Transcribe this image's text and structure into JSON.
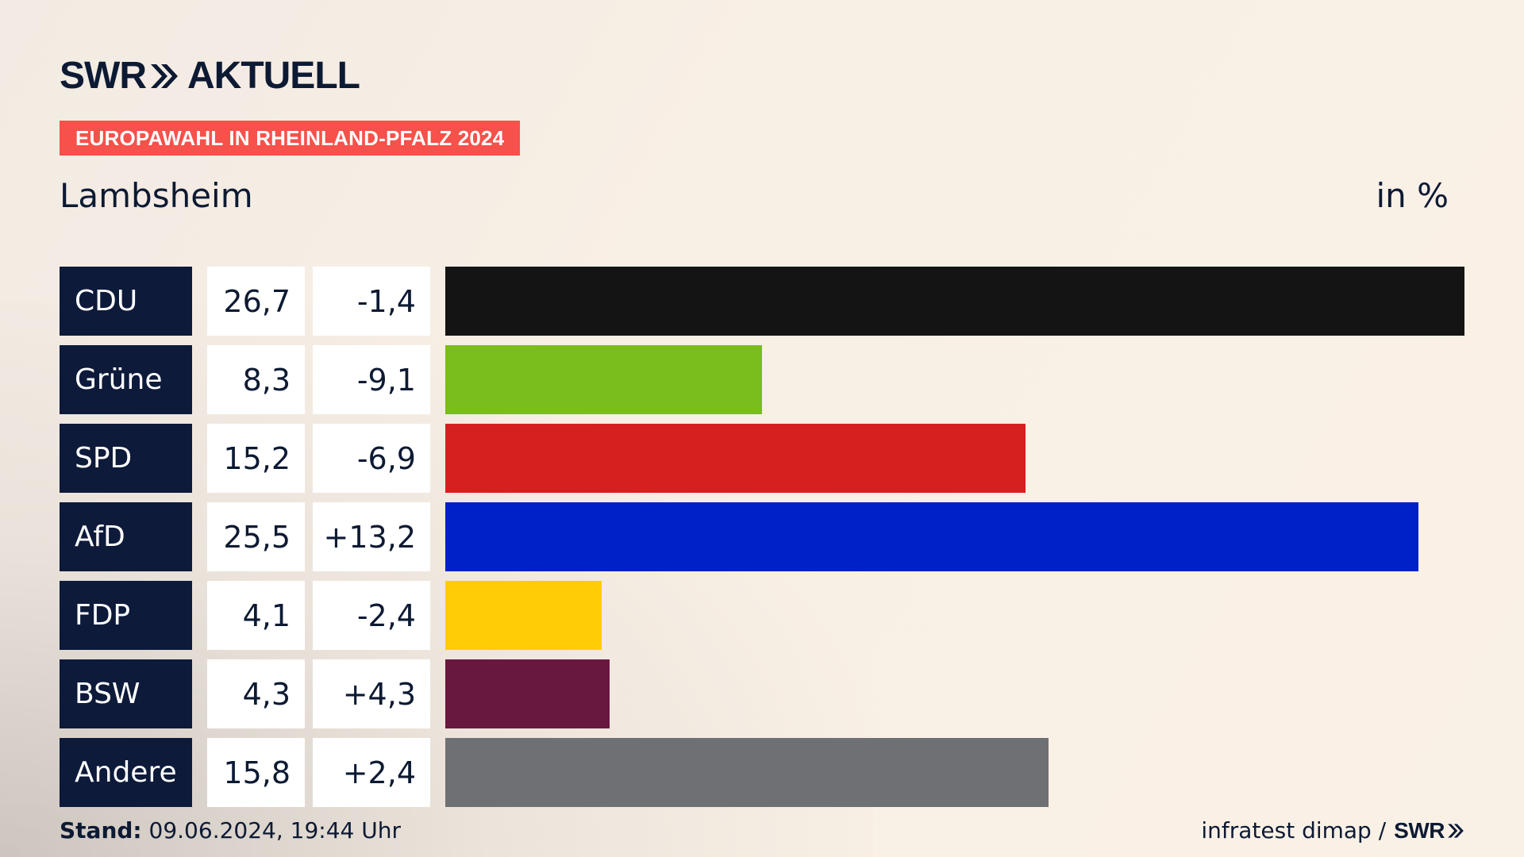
{
  "header": {
    "logo_left": "SWR",
    "logo_right": "AKTUELL",
    "badge": "EUROPAWAHL IN RHEINLAND-PFALZ 2024",
    "place": "Lambsheim",
    "unit": "in %"
  },
  "footer": {
    "stand_label": "Stand:",
    "stand_value": "09.06.2024, 19:44 Uhr",
    "source": "infratest dimap /",
    "source_logo": "SWR"
  },
  "colors": {
    "CDU": "#141414",
    "Grüne": "#79be1d",
    "SPD": "#d6201f",
    "AfD": "#0020c8",
    "FDP": "#ffcc06",
    "BSW": "#68183e",
    "Andere": "#6f7073"
  },
  "chart_data": {
    "type": "bar",
    "orientation": "horizontal",
    "title": "Lambsheim",
    "unit": "in %",
    "categories": [
      "CDU",
      "Grüne",
      "SPD",
      "AfD",
      "FDP",
      "BSW",
      "Andere"
    ],
    "values": [
      26.7,
      8.3,
      15.2,
      25.5,
      4.1,
      4.3,
      15.8
    ],
    "value_labels": [
      "26,7",
      "8,3",
      "15,2",
      "25,5",
      "4,1",
      "4,3",
      "15,8"
    ],
    "diff_labels": [
      "-1,4",
      "-9,1",
      "-6,9",
      "+13,2",
      "-2,4",
      "+4,3",
      "+2,4"
    ],
    "xlim": [
      0,
      26.7
    ]
  }
}
